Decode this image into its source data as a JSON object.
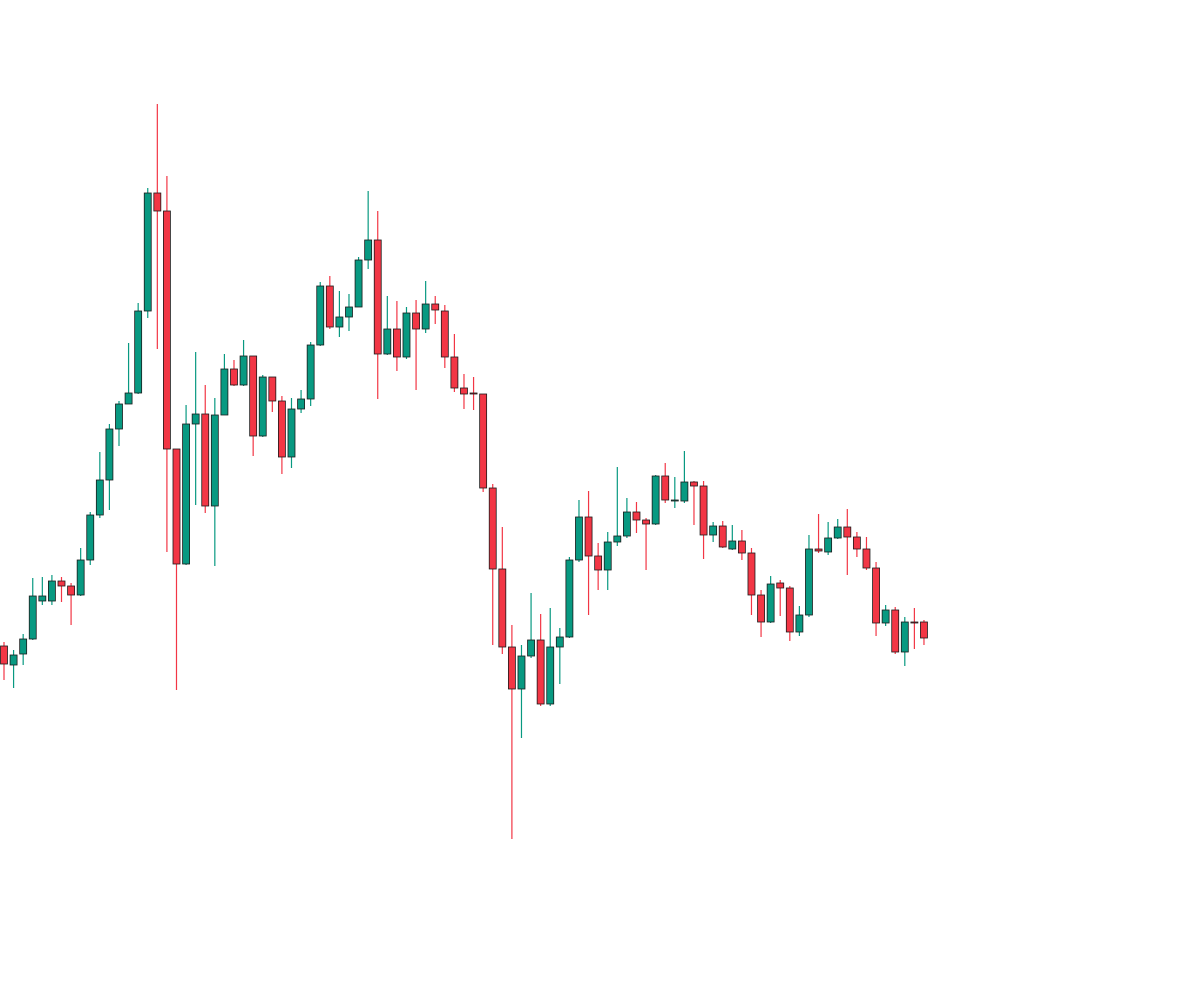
{
  "chart_data": {
    "type": "candlestick",
    "up_color": "#089981",
    "down_color": "#f23645",
    "ylim": [
      5,
      1000
    ],
    "open": [
      354,
      335,
      346,
      361,
      399,
      399,
      419,
      414,
      405,
      440,
      485,
      520,
      571,
      596,
      607,
      689,
      807,
      789,
      551,
      436,
      576,
      586,
      494,
      585,
      631,
      615,
      644,
      564,
      623,
      599,
      543,
      591,
      601,
      655,
      714,
      673,
      683,
      693,
      740,
      760,
      646,
      671,
      643,
      687,
      671,
      696,
      689,
      643,
      612,
      607,
      606,
      512,
      431,
      353,
      311,
      344,
      360,
      296,
      353,
      363,
      440,
      483,
      444,
      430,
      458,
      464,
      488,
      480,
      476,
      524,
      499,
      499,
      518,
      514,
      465,
      474,
      451,
      459,
      447,
      405,
      378,
      417,
      412,
      368,
      385,
      451,
      448,
      462,
      473,
      463,
      451,
      432,
      377,
      390,
      348,
      378,
      378
    ],
    "high": [
      358,
      350,
      366,
      422,
      423,
      425,
      423,
      417,
      452,
      488,
      548,
      576,
      599,
      657,
      697,
      812,
      896,
      824,
      551,
      595,
      648,
      615,
      602,
      646,
      640,
      660,
      644,
      625,
      623,
      604,
      602,
      610,
      658,
      718,
      724,
      709,
      706,
      743,
      809,
      789,
      704,
      699,
      693,
      700,
      719,
      704,
      695,
      666,
      626,
      623,
      606,
      516,
      473,
      375,
      355,
      407,
      386,
      392,
      372,
      443,
      500,
      509,
      457,
      468,
      533,
      502,
      498,
      482,
      525,
      537,
      523,
      549,
      519,
      519,
      478,
      479,
      475,
      470,
      452,
      410,
      424,
      420,
      414,
      394,
      465,
      486,
      478,
      481,
      491,
      468,
      463,
      438,
      395,
      393,
      383,
      392,
      380
    ],
    "low": [
      320,
      312,
      335,
      360,
      395,
      395,
      398,
      375,
      404,
      435,
      482,
      490,
      554,
      596,
      606,
      682,
      651,
      448,
      310,
      435,
      495,
      487,
      434,
      585,
      614,
      614,
      544,
      563,
      588,
      526,
      532,
      587,
      594,
      654,
      671,
      663,
      669,
      693,
      731,
      601,
      645,
      629,
      641,
      610,
      667,
      676,
      632,
      608,
      591,
      590,
      508,
      355,
      346,
      161,
      262,
      342,
      294,
      294,
      316,
      362,
      438,
      385,
      410,
      410,
      454,
      462,
      467,
      430,
      475,
      497,
      492,
      497,
      475,
      441,
      458,
      452,
      450,
      440,
      385,
      363,
      377,
      384,
      359,
      364,
      383,
      447,
      445,
      461,
      425,
      443,
      430,
      364,
      374,
      346,
      334,
      351,
      355
    ],
    "close": [
      336,
      345,
      361,
      404,
      404,
      419,
      414,
      405,
      440,
      485,
      520,
      571,
      596,
      607,
      689,
      807,
      789,
      551,
      436,
      576,
      586,
      494,
      585,
      631,
      615,
      644,
      564,
      623,
      599,
      543,
      591,
      601,
      655,
      714,
      673,
      683,
      693,
      740,
      760,
      646,
      671,
      643,
      687,
      671,
      696,
      690,
      643,
      612,
      606,
      606,
      512,
      431,
      353,
      311,
      344,
      360,
      296,
      353,
      363,
      440,
      483,
      444,
      430,
      458,
      464,
      488,
      480,
      476,
      524,
      500,
      500,
      518,
      514,
      465,
      474,
      453,
      459,
      447,
      405,
      378,
      416,
      412,
      368,
      385,
      451,
      449,
      462,
      473,
      463,
      451,
      432,
      377,
      390,
      348,
      378,
      377,
      362
    ]
  }
}
